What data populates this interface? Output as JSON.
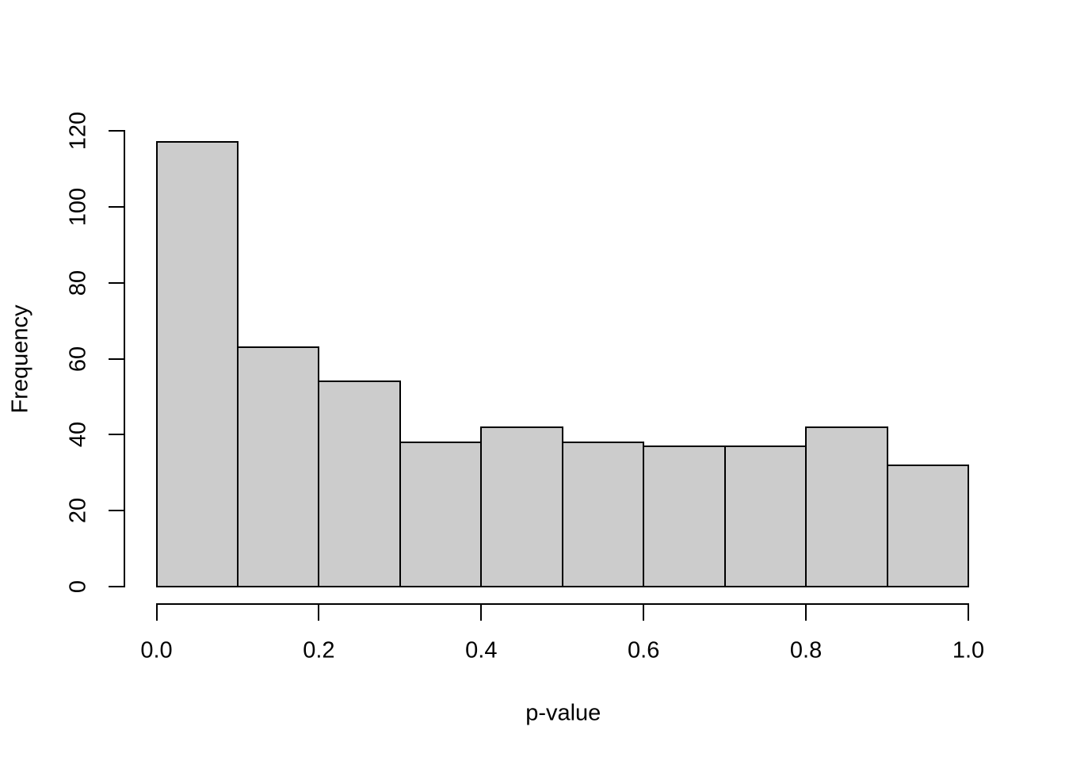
{
  "chart_data": {
    "type": "bar",
    "subtype": "histogram",
    "title": "",
    "xlabel": "p-value",
    "ylabel": "Frequency",
    "bin_edges": [
      0.0,
      0.1,
      0.2,
      0.3,
      0.4,
      0.5,
      0.6,
      0.7,
      0.8,
      0.9,
      1.0
    ],
    "values": [
      117,
      63,
      54,
      38,
      42,
      38,
      37,
      37,
      42,
      32
    ],
    "x_ticks": [
      "0.0",
      "0.2",
      "0.4",
      "0.6",
      "0.8",
      "1.0"
    ],
    "x_tick_values": [
      0.0,
      0.2,
      0.4,
      0.6,
      0.8,
      1.0
    ],
    "y_ticks": [
      "0",
      "20",
      "40",
      "60",
      "80",
      "100",
      "120"
    ],
    "y_tick_values": [
      0,
      20,
      40,
      60,
      80,
      100,
      120
    ],
    "xlim": [
      0,
      1
    ],
    "ylim": [
      0,
      120
    ],
    "grid": "off",
    "legend": "none",
    "bar_fill_color": "#cccccc",
    "bar_border_color": "#000000",
    "axis_color": "#000000",
    "background_color": "#ffffff"
  }
}
